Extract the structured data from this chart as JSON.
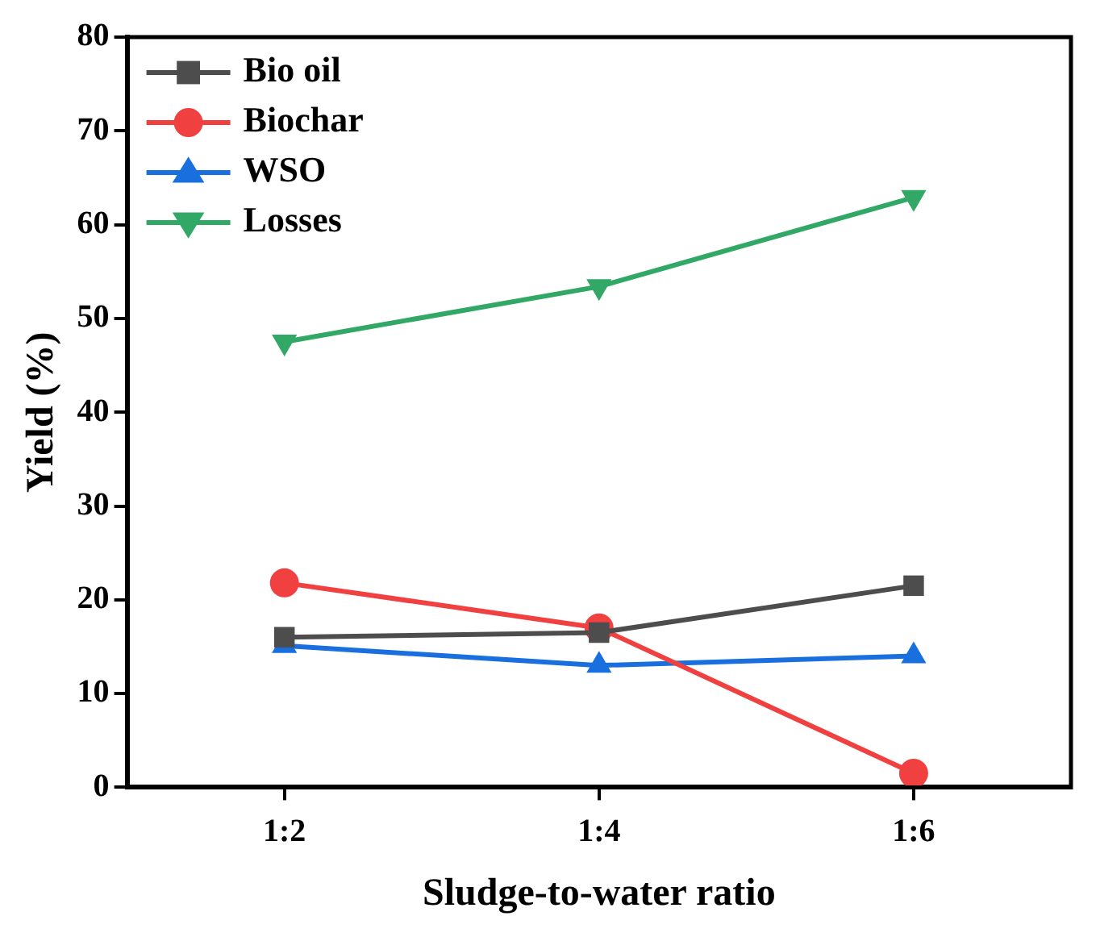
{
  "chart_data": {
    "type": "line",
    "xlabel": "Sludge-to-water ratio",
    "ylabel": "Yield (%)",
    "categories": [
      "1:2",
      "1:4",
      "1:6"
    ],
    "series": [
      {
        "name": "Bio oil",
        "color": "#4d4d4d",
        "marker": "square",
        "values": [
          16.0,
          16.5,
          21.5
        ]
      },
      {
        "name": "Biochar",
        "color": "#f04040",
        "marker": "circle",
        "values": [
          21.8,
          17.0,
          1.5
        ]
      },
      {
        "name": "WSO",
        "color": "#1a6fdf",
        "marker": "triangle",
        "values": [
          15.1,
          13.0,
          14.0
        ]
      },
      {
        "name": "Losses",
        "color": "#31a866",
        "marker": "triangle-down",
        "values": [
          47.5,
          53.4,
          62.9
        ]
      }
    ],
    "ylim": [
      0,
      80
    ],
    "yticks": [
      0,
      10,
      20,
      30,
      40,
      50,
      60,
      70,
      80
    ],
    "grid": false,
    "legend": "top left",
    "line_style": "solid"
  }
}
